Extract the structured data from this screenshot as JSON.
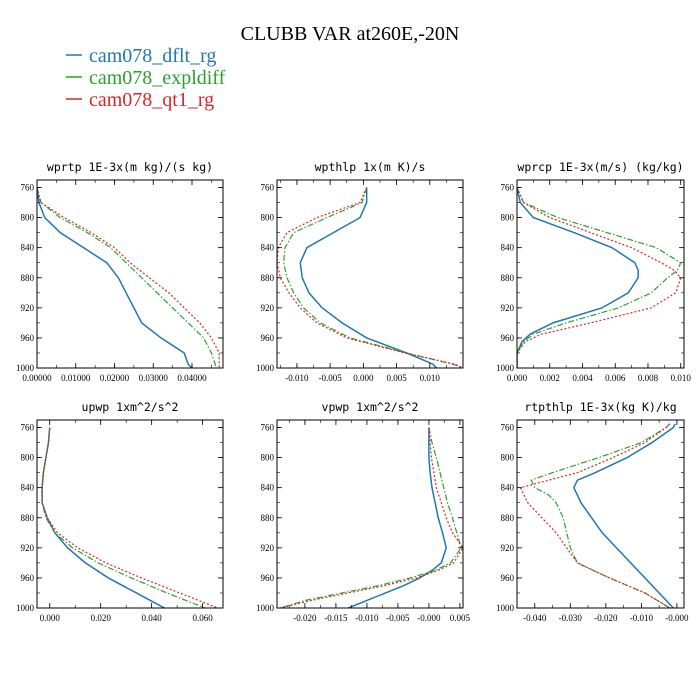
{
  "title": "CLUBB VAR at260E,-20N",
  "legend": [
    {
      "name": "cam078_dflt_rg",
      "color": "#1f77b4",
      "style": "solid"
    },
    {
      "name": "cam078_expldiff",
      "color": "#2ca02c",
      "style": "dashdot"
    },
    {
      "name": "cam078_qt1_rg",
      "color": "#d62728",
      "style": "dotted"
    }
  ],
  "chart_data": [
    {
      "type": "line",
      "title": "wprtp  1E-3x(m kg)/(s kg)",
      "ylim": [
        1000,
        750
      ],
      "yticks": [
        760,
        800,
        840,
        880,
        920,
        960,
        1000
      ],
      "xlim": [
        0,
        0.048
      ],
      "xticks": [
        0,
        0.01,
        0.02,
        0.03,
        0.04
      ],
      "xticklabels": [
        "0.00000",
        "0.01000",
        "0.02000",
        "0.03000",
        "0.04000"
      ],
      "y": [
        760,
        780,
        800,
        820,
        840,
        860,
        880,
        900,
        920,
        940,
        960,
        980,
        995,
        1000
      ],
      "series": [
        {
          "name": "cam078_dflt_rg",
          "values": [
            0,
            0.0005,
            0.002,
            0.006,
            0.012,
            0.018,
            0.021,
            0.023,
            0.025,
            0.027,
            0.032,
            0.038,
            0.039,
            0.04
          ]
        },
        {
          "name": "cam078_expldiff",
          "values": [
            0,
            0.001,
            0.006,
            0.013,
            0.019,
            0.023,
            0.027,
            0.031,
            0.035,
            0.039,
            0.043,
            0.045,
            0.046,
            0.046
          ]
        },
        {
          "name": "cam078_qt1_rg",
          "values": [
            0,
            0.001,
            0.007,
            0.014,
            0.02,
            0.024,
            0.029,
            0.034,
            0.038,
            0.042,
            0.045,
            0.047,
            0.047,
            0.047
          ]
        }
      ]
    },
    {
      "type": "line",
      "title": "wpthlp  1x(m K)/s",
      "ylim": [
        1000,
        750
      ],
      "yticks": [
        760,
        800,
        840,
        880,
        920,
        960,
        1000
      ],
      "xlim": [
        -0.013,
        0.015
      ],
      "xticks": [
        -0.01,
        -0.005,
        0,
        0.005,
        0.01
      ],
      "xticklabels": [
        "-0.010",
        "-0.005",
        "0.000",
        "0.005",
        "0.010"
      ],
      "y": [
        760,
        780,
        800,
        820,
        840,
        860,
        880,
        900,
        920,
        940,
        960,
        980,
        995,
        1000
      ],
      "series": [
        {
          "name": "cam078_dflt_rg",
          "values": [
            0.0005,
            0.0005,
            -0.0005,
            -0.0045,
            -0.0085,
            -0.0095,
            -0.0092,
            -0.0082,
            -0.0062,
            -0.0032,
            0.0005,
            0.0065,
            0.0105,
            0.011
          ]
        },
        {
          "name": "cam078_expldiff",
          "values": [
            0.0005,
            -0.0002,
            -0.0055,
            -0.0105,
            -0.0118,
            -0.012,
            -0.0115,
            -0.0105,
            -0.009,
            -0.0065,
            -0.002,
            0.0065,
            0.0135,
            0.015
          ]
        },
        {
          "name": "cam078_qt1_rg",
          "values": [
            0.0005,
            -0.0005,
            -0.007,
            -0.0115,
            -0.0128,
            -0.013,
            -0.0125,
            -0.0112,
            -0.0095,
            -0.007,
            -0.0025,
            0.0062,
            0.0138,
            0.015
          ]
        }
      ]
    },
    {
      "type": "line",
      "title": "wprcp  1E-3x(m/s) (kg/kg)",
      "ylim": [
        1000,
        750
      ],
      "yticks": [
        760,
        800,
        840,
        880,
        920,
        960,
        1000
      ],
      "xlim": [
        0,
        0.0102
      ],
      "xticks": [
        0,
        0.002,
        0.004,
        0.006,
        0.008,
        0.01
      ],
      "xticklabels": [
        "0.000",
        "0.002",
        "0.004",
        "0.006",
        "0.008",
        "0.010"
      ],
      "y": [
        760,
        780,
        800,
        820,
        840,
        860,
        870,
        880,
        900,
        920,
        940,
        955,
        965,
        980,
        1000
      ],
      "series": [
        {
          "name": "cam078_dflt_rg",
          "values": [
            0,
            0.0002,
            0.001,
            0.0035,
            0.0058,
            0.0072,
            0.0074,
            0.0074,
            0.0068,
            0.0052,
            0.0022,
            0.0008,
            0.0003,
            0,
            0
          ]
        },
        {
          "name": "cam078_expldiff",
          "values": [
            0,
            0.0004,
            0.0025,
            0.0055,
            0.0085,
            0.01,
            0.0098,
            0.0092,
            0.0082,
            0.0062,
            0.003,
            0.001,
            0.0004,
            0,
            0
          ]
        },
        {
          "name": "cam078_qt1_rg",
          "values": [
            0,
            0.0004,
            0.002,
            0.0045,
            0.007,
            0.0088,
            0.0096,
            0.01,
            0.0097,
            0.0082,
            0.0045,
            0.0015,
            0.0005,
            0,
            0
          ]
        }
      ]
    },
    {
      "type": "line",
      "title": "upwp  1xm^2/s^2",
      "ylim": [
        1000,
        750
      ],
      "yticks": [
        760,
        800,
        840,
        880,
        920,
        960,
        1000
      ],
      "xlim": [
        -0.005,
        0.068
      ],
      "xticks": [
        0,
        0.02,
        0.04,
        0.06
      ],
      "xticklabels": [
        "0.000",
        "0.020",
        "0.040",
        "0.060"
      ],
      "y": [
        760,
        780,
        800,
        820,
        840,
        860,
        880,
        900,
        920,
        940,
        960,
        980,
        1000
      ],
      "series": [
        {
          "name": "cam078_dflt_rg",
          "values": [
            0.0,
            -0.0005,
            -0.0015,
            -0.0025,
            -0.003,
            -0.003,
            -0.001,
            0.002,
            0.007,
            0.014,
            0.023,
            0.034,
            0.045
          ]
        },
        {
          "name": "cam078_expldiff",
          "values": [
            0.0,
            -0.0005,
            -0.0015,
            -0.0025,
            -0.003,
            -0.003,
            -0.0015,
            0.002,
            0.009,
            0.019,
            0.032,
            0.046,
            0.061
          ]
        },
        {
          "name": "cam078_qt1_rg",
          "values": [
            0.0,
            -0.0005,
            -0.0015,
            -0.0025,
            -0.003,
            -0.003,
            -0.001,
            0.003,
            0.011,
            0.022,
            0.036,
            0.051,
            0.066
          ]
        }
      ]
    },
    {
      "type": "line",
      "title": "vpwp  1xm^2/s^2",
      "ylim": [
        1000,
        750
      ],
      "yticks": [
        760,
        800,
        840,
        880,
        920,
        960,
        1000
      ],
      "xlim": [
        -0.0245,
        0.0055
      ],
      "xticks": [
        -0.02,
        -0.015,
        -0.01,
        -0.005,
        0,
        0.005
      ],
      "xticklabels": [
        "-0.020",
        "-0.015",
        "-0.010",
        "-0.005",
        "-0.000",
        "0.005"
      ],
      "y": [
        760,
        780,
        800,
        820,
        840,
        860,
        880,
        900,
        920,
        940,
        950,
        960,
        970,
        980,
        990,
        1000
      ],
      "series": [
        {
          "name": "cam078_dflt_rg",
          "values": [
            0.0,
            0.0,
            0.0,
            0.0002,
            0.0005,
            0.001,
            0.0015,
            0.0022,
            0.0028,
            0.002,
            0.0005,
            -0.0015,
            -0.004,
            -0.007,
            -0.01,
            -0.013
          ]
        },
        {
          "name": "cam078_expldiff",
          "values": [
            0.0,
            0.0005,
            0.0012,
            0.0018,
            0.0024,
            0.003,
            0.0038,
            0.0045,
            0.0052,
            0.0035,
            0.001,
            -0.003,
            -0.008,
            -0.014,
            -0.02,
            -0.024
          ]
        },
        {
          "name": "cam078_qt1_rg",
          "values": [
            0.0,
            0.0002,
            0.0004,
            0.0008,
            0.0012,
            0.002,
            0.0028,
            0.0038,
            0.0055,
            0.004,
            0.0015,
            -0.002,
            -0.007,
            -0.013,
            -0.019,
            -0.024
          ]
        }
      ]
    },
    {
      "type": "line",
      "title": "rtpthlp  1E-3x(kg K)/kg",
      "ylim": [
        1000,
        750
      ],
      "yticks": [
        760,
        800,
        840,
        880,
        920,
        960,
        1000
      ],
      "xlim": [
        -0.045,
        0.002
      ],
      "xticks": [
        -0.04,
        -0.03,
        -0.02,
        -0.01,
        0
      ],
      "xticklabels": [
        "-0.040",
        "-0.030",
        "-0.020",
        "-0.010",
        "-0.000"
      ],
      "y": [
        755,
        760,
        780,
        800,
        820,
        830,
        840,
        850,
        860,
        880,
        900,
        920,
        940,
        960,
        980,
        1000
      ],
      "series": [
        {
          "name": "cam078_dflt_rg",
          "values": [
            -0.0005,
            -0.001,
            -0.007,
            -0.014,
            -0.023,
            -0.028,
            -0.029,
            -0.028,
            -0.027,
            -0.024,
            -0.021,
            -0.017,
            -0.013,
            -0.009,
            -0.005,
            -0.001
          ]
        },
        {
          "name": "cam078_expldiff",
          "values": [
            -0.002,
            -0.003,
            -0.01,
            -0.022,
            -0.035,
            -0.041,
            -0.04,
            -0.036,
            -0.034,
            -0.032,
            -0.031,
            -0.03,
            -0.028,
            -0.019,
            -0.009,
            -0.002
          ]
        },
        {
          "name": "cam078_qt1_rg",
          "values": [
            -0.002,
            -0.003,
            -0.009,
            -0.018,
            -0.028,
            -0.036,
            -0.044,
            -0.043,
            -0.042,
            -0.038,
            -0.034,
            -0.031,
            -0.028,
            -0.019,
            -0.009,
            -0.002
          ]
        }
      ]
    }
  ]
}
